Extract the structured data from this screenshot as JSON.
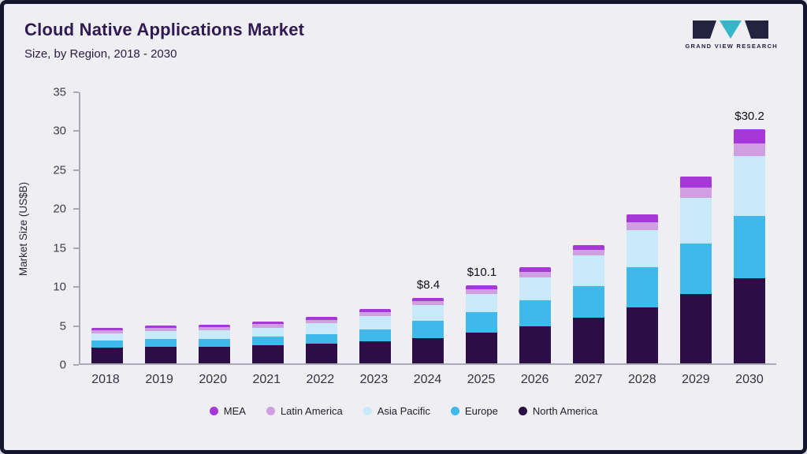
{
  "header": {
    "title": "Cloud Native Applications Market",
    "subtitle": "Size, by Region, 2018 - 2030",
    "logo_text": "GRAND VIEW RESEARCH"
  },
  "chart_data": {
    "type": "bar",
    "stacked": true,
    "title": "Cloud Native Applications Market Size, by Region, 2018 - 2030",
    "xlabel": "",
    "ylabel": "Market Size (US$B)",
    "ylim": [
      0,
      35
    ],
    "yticks": [
      0,
      5,
      10,
      15,
      20,
      25,
      30,
      35
    ],
    "grid": false,
    "legend_position": "bottom",
    "categories": [
      "2018",
      "2019",
      "2020",
      "2021",
      "2022",
      "2023",
      "2024",
      "2025",
      "2026",
      "2027",
      "2028",
      "2029",
      "2030"
    ],
    "series": [
      {
        "name": "North America",
        "color": "#2a0e45",
        "values": [
          2.0,
          2.1,
          2.1,
          2.3,
          2.5,
          2.85,
          3.3,
          4.0,
          4.8,
          5.9,
          7.2,
          9.0,
          11.0
        ]
      },
      {
        "name": "Europe",
        "color": "#41b8ea",
        "values": [
          1.0,
          1.05,
          1.1,
          1.15,
          1.3,
          1.55,
          2.2,
          2.6,
          3.3,
          4.1,
          5.2,
          6.5,
          8.0
        ]
      },
      {
        "name": "Asia Pacific",
        "color": "#c8e9f9",
        "values": [
          0.9,
          1.0,
          1.05,
          1.15,
          1.35,
          1.7,
          2.0,
          2.4,
          3.0,
          3.9,
          4.8,
          5.9,
          7.8
        ]
      },
      {
        "name": "Latin America",
        "color": "#cf9fe2",
        "values": [
          0.35,
          0.4,
          0.4,
          0.45,
          0.45,
          0.5,
          0.5,
          0.6,
          0.7,
          0.8,
          1.0,
          1.3,
          1.6
        ]
      },
      {
        "name": "MEA",
        "color": "#a538d6",
        "values": [
          0.3,
          0.3,
          0.35,
          0.35,
          0.4,
          0.4,
          0.4,
          0.5,
          0.6,
          0.6,
          1.0,
          1.4,
          1.8
        ]
      }
    ],
    "legend_order": [
      "MEA",
      "Latin America",
      "Asia Pacific",
      "Europe",
      "North America"
    ],
    "annotations": [
      {
        "category": "2024",
        "label": "$8.4"
      },
      {
        "category": "2025",
        "label": "$10.1"
      },
      {
        "category": "2030",
        "label": "$30.2"
      }
    ],
    "colors": {
      "background": "#eeeef3",
      "border": "#15152e",
      "title": "#2f1a52",
      "logo_accent": "#35b6c9",
      "logo_dark": "#23233f"
    }
  }
}
